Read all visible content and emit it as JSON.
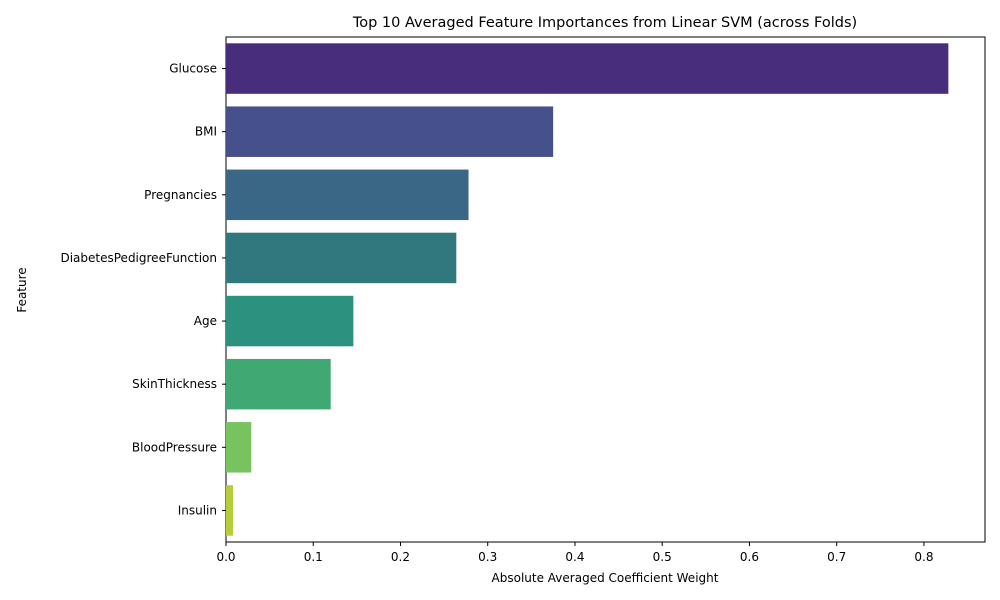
{
  "chart_data": {
    "type": "bar",
    "orientation": "horizontal",
    "title": "Top 10 Averaged Feature Importances from Linear SVM (across Folds)",
    "xlabel": "Absolute Averaged Coefficient Weight",
    "ylabel": "Feature",
    "xlim": [
      0,
      0.87
    ],
    "xticks": [
      "0.0",
      "0.1",
      "0.2",
      "0.3",
      "0.4",
      "0.5",
      "0.6",
      "0.7",
      "0.8"
    ],
    "grid": false,
    "categories": [
      "Glucose",
      "BMI",
      "Pregnancies",
      "DiabetesPedigreeFunction",
      "Age",
      "SkinThickness",
      "BloodPressure",
      "Insulin"
    ],
    "values": [
      0.828,
      0.375,
      0.278,
      0.264,
      0.146,
      0.12,
      0.029,
      0.008
    ],
    "colors": [
      "#472d7b",
      "#46508a",
      "#3b6787",
      "#31787e",
      "#2c917f",
      "#40a872",
      "#78c25f",
      "#b5cd3b"
    ]
  }
}
